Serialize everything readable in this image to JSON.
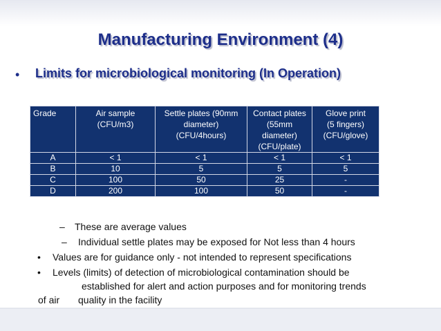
{
  "slide": {
    "title": "Manufacturing Environment (4)",
    "subtitle": "Limits for microbiological monitoring (In Operation)"
  },
  "table": {
    "headers": [
      [
        "Grade"
      ],
      [
        "Air sample",
        "(CFU/m3)"
      ],
      [
        "Settle plates (90mm",
        "diameter)",
        "(CFU/4hours)"
      ],
      [
        "Contact plates",
        "(55mm",
        "diameter)",
        "(CFU/plate)"
      ],
      [
        "Glove print",
        "(5 fingers)",
        "(CFU/glove)"
      ]
    ],
    "rows": [
      [
        "A",
        "< 1",
        "< 1",
        "< 1",
        "< 1"
      ],
      [
        "B",
        "10",
        "5",
        "5",
        "5"
      ],
      [
        "C",
        "100",
        "50",
        "25",
        "-"
      ],
      [
        "D",
        "200",
        "100",
        "50",
        "-"
      ]
    ]
  },
  "notes": {
    "dash1": "These are average values",
    "dash2": "Individual settle plates may be exposed for Not less than 4 hours",
    "bullet1": "Values are for guidance only - not intended to represent specifications",
    "bullet2_line1": "Levels (limits) of detection of microbiological contamination should be",
    "bullet2_line2": "established for alert and action purposes and for monitoring trends",
    "bullet2_line3a": "of air",
    "bullet2_line3b": "quality in the facility"
  },
  "colors": {
    "title": "#1d2e8a",
    "table_bg": "#12326f",
    "header_band": "#d9dce8"
  }
}
